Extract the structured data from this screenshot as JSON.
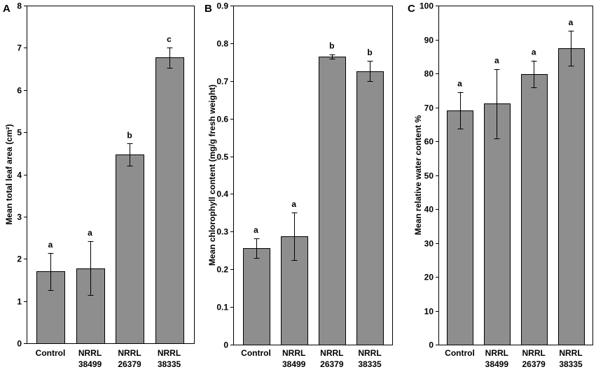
{
  "colors": {
    "bar_fill": "#8e8e8e",
    "bar_stroke": "#000000",
    "axis": "#000000",
    "text": "#000000"
  },
  "chart_data": [
    {
      "panel": "A",
      "type": "bar",
      "categories": [
        "Control",
        "NRRL\n38499",
        "NRRL\n26379",
        "NRRL\n38335"
      ],
      "values": [
        1.7,
        1.78,
        4.47,
        6.77
      ],
      "errors": [
        0.44,
        0.64,
        0.26,
        0.24
      ],
      "annotations": [
        "a",
        "a",
        "b",
        "c"
      ],
      "ylabel": "Mean total leaf area (cm²)",
      "ylim": [
        0,
        8
      ],
      "yticks": [
        0,
        1,
        2,
        3,
        4,
        5,
        6,
        7,
        8
      ],
      "grid": false
    },
    {
      "panel": "B",
      "type": "bar",
      "categories": [
        "Control",
        "NRRL\n38499",
        "NRRL\n26379",
        "NRRL\n38335"
      ],
      "values": [
        0.256,
        0.288,
        0.765,
        0.726
      ],
      "errors": [
        0.026,
        0.063,
        0.006,
        0.027
      ],
      "annotations": [
        "a",
        "a",
        "b",
        "b"
      ],
      "ylabel": "Mean chlorophyll content (mg/g fresh weight)",
      "ylim": [
        0,
        0.9
      ],
      "yticks": [
        0,
        0.1,
        0.2,
        0.3,
        0.4,
        0.5,
        0.6,
        0.7,
        0.8,
        0.9
      ],
      "grid": false
    },
    {
      "panel": "C",
      "type": "bar",
      "categories": [
        "Control",
        "NRRL\n38499",
        "NRRL\n26379",
        "NRRL\n38335"
      ],
      "values": [
        69.1,
        71.1,
        79.8,
        87.4
      ],
      "errors": [
        5.4,
        10.2,
        4.0,
        5.2
      ],
      "annotations": [
        "a",
        "a",
        "a",
        "a"
      ],
      "ylabel": "Mean relative water content %",
      "ylim": [
        0,
        100
      ],
      "yticks": [
        0,
        10,
        20,
        30,
        40,
        50,
        60,
        70,
        80,
        90,
        100
      ],
      "grid": false
    }
  ]
}
